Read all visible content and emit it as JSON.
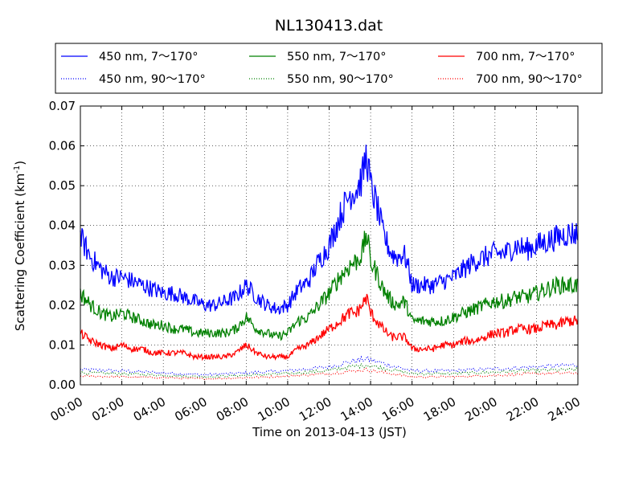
{
  "chart_data": {
    "type": "line",
    "title": "NL130413.dat",
    "xlabel": "Time on 2013-04-13 (JST)",
    "ylabel": "Scattering Coefficient (km",
    "ylabel_sup": "-1",
    "ylabel_end": ")",
    "xlim": [
      0,
      24
    ],
    "ylim": [
      0.0,
      0.07
    ],
    "x_tick_values": [
      0,
      2,
      4,
      6,
      8,
      10,
      12,
      14,
      16,
      18,
      20,
      22,
      24
    ],
    "x_tick_labels": [
      "00:00",
      "02:00",
      "04:00",
      "06:00",
      "08:00",
      "10:00",
      "12:00",
      "14:00",
      "16:00",
      "18:00",
      "20:00",
      "22:00",
      "24:00"
    ],
    "y_tick_values": [
      0.0,
      0.01,
      0.02,
      0.03,
      0.04,
      0.05,
      0.06,
      0.07
    ],
    "y_tick_labels": [
      "0.00",
      "0.01",
      "0.02",
      "0.03",
      "0.04",
      "0.05",
      "0.06",
      "0.07"
    ],
    "grid": true,
    "legend_placement": "top, above plot",
    "legend_columns": 3,
    "series": [
      {
        "name": "450 nm, 7～170°",
        "color": "#0000ff",
        "style": "solid",
        "x": [
          0,
          0.5,
          1,
          1.5,
          2,
          2.5,
          3,
          3.5,
          4,
          4.5,
          5,
          5.5,
          6,
          6.5,
          7,
          7.5,
          8,
          8.5,
          9,
          9.5,
          10,
          10.5,
          11,
          11.5,
          12,
          12.5,
          13,
          13.3,
          13.6,
          13.8,
          14,
          14.3,
          14.6,
          15,
          15.3,
          15.6,
          15.8,
          16,
          16.5,
          17,
          17.5,
          18,
          18.5,
          19,
          19.5,
          20,
          20.5,
          21,
          21.5,
          22,
          22.5,
          23,
          23.5,
          24
        ],
        "y": [
          0.037,
          0.032,
          0.029,
          0.027,
          0.027,
          0.026,
          0.025,
          0.024,
          0.023,
          0.023,
          0.022,
          0.021,
          0.02,
          0.02,
          0.021,
          0.022,
          0.025,
          0.022,
          0.02,
          0.019,
          0.02,
          0.024,
          0.026,
          0.031,
          0.035,
          0.042,
          0.048,
          0.049,
          0.052,
          0.058,
          0.05,
          0.045,
          0.038,
          0.033,
          0.032,
          0.033,
          0.03,
          0.025,
          0.025,
          0.025,
          0.026,
          0.027,
          0.029,
          0.031,
          0.032,
          0.033,
          0.033,
          0.035,
          0.034,
          0.035,
          0.036,
          0.037,
          0.038,
          0.038
        ]
      },
      {
        "name": "450 nm, 90～170°",
        "color": "#0000ff",
        "style": "dotted",
        "x": [
          0,
          2,
          4,
          6,
          8,
          10,
          12,
          13,
          13.8,
          14.5,
          16,
          18,
          20,
          22,
          24
        ],
        "y": [
          0.0038,
          0.0035,
          0.003,
          0.0025,
          0.003,
          0.0035,
          0.0045,
          0.0058,
          0.0065,
          0.0055,
          0.0035,
          0.0035,
          0.004,
          0.0045,
          0.005
        ]
      },
      {
        "name": "550 nm, 7～170°",
        "color": "#008000",
        "style": "solid",
        "x": [
          0,
          0.5,
          1,
          1.5,
          2,
          2.5,
          3,
          3.5,
          4,
          4.5,
          5,
          5.5,
          6,
          6.5,
          7,
          7.5,
          8,
          8.5,
          9,
          9.5,
          10,
          10.5,
          11,
          11.5,
          12,
          12.5,
          13,
          13.3,
          13.6,
          13.8,
          14,
          14.3,
          14.6,
          15,
          15.3,
          15.6,
          15.8,
          16,
          16.5,
          17,
          17.5,
          18,
          18.5,
          19,
          19.5,
          20,
          20.5,
          21,
          21.5,
          22,
          22.5,
          23,
          23.5,
          24
        ],
        "y": [
          0.023,
          0.02,
          0.018,
          0.017,
          0.018,
          0.017,
          0.016,
          0.015,
          0.015,
          0.014,
          0.014,
          0.013,
          0.013,
          0.013,
          0.013,
          0.014,
          0.017,
          0.014,
          0.013,
          0.012,
          0.013,
          0.016,
          0.017,
          0.02,
          0.023,
          0.027,
          0.03,
          0.031,
          0.033,
          0.038,
          0.031,
          0.028,
          0.024,
          0.021,
          0.02,
          0.021,
          0.019,
          0.016,
          0.016,
          0.016,
          0.016,
          0.017,
          0.018,
          0.019,
          0.02,
          0.021,
          0.021,
          0.022,
          0.022,
          0.023,
          0.024,
          0.025,
          0.025,
          0.025
        ]
      },
      {
        "name": "550 nm, 90～170°",
        "color": "#008000",
        "style": "dotted",
        "x": [
          0,
          2,
          4,
          6,
          8,
          10,
          12,
          13,
          13.8,
          14.5,
          16,
          18,
          20,
          22,
          24
        ],
        "y": [
          0.003,
          0.0028,
          0.0024,
          0.002,
          0.0024,
          0.0028,
          0.0036,
          0.0045,
          0.005,
          0.0043,
          0.0028,
          0.0028,
          0.0032,
          0.0036,
          0.0038
        ]
      },
      {
        "name": "700 nm, 7～170°",
        "color": "#ff0000",
        "style": "solid",
        "x": [
          0,
          0.5,
          1,
          1.5,
          2,
          2.5,
          3,
          3.5,
          4,
          4.5,
          5,
          5.5,
          6,
          6.5,
          7,
          7.5,
          8,
          8.5,
          9,
          9.5,
          10,
          10.5,
          11,
          11.5,
          12,
          12.5,
          13,
          13.3,
          13.6,
          13.8,
          14,
          14.3,
          14.6,
          15,
          15.3,
          15.6,
          15.8,
          16,
          16.5,
          17,
          17.5,
          18,
          18.5,
          19,
          19.5,
          20,
          20.5,
          21,
          21.5,
          22,
          22.5,
          23,
          23.5,
          24
        ],
        "y": [
          0.013,
          0.011,
          0.01,
          0.009,
          0.01,
          0.009,
          0.009,
          0.008,
          0.008,
          0.008,
          0.008,
          0.007,
          0.007,
          0.007,
          0.007,
          0.008,
          0.01,
          0.008,
          0.007,
          0.007,
          0.007,
          0.009,
          0.01,
          0.012,
          0.014,
          0.016,
          0.018,
          0.018,
          0.02,
          0.022,
          0.018,
          0.016,
          0.014,
          0.012,
          0.012,
          0.012,
          0.011,
          0.009,
          0.009,
          0.009,
          0.01,
          0.01,
          0.011,
          0.011,
          0.012,
          0.013,
          0.013,
          0.014,
          0.014,
          0.014,
          0.015,
          0.015,
          0.016,
          0.016
        ]
      },
      {
        "name": "700 nm, 90～170°",
        "color": "#ff0000",
        "style": "dotted",
        "x": [
          0,
          2,
          4,
          6,
          8,
          10,
          12,
          13,
          13.8,
          14.5,
          16,
          18,
          20,
          22,
          24
        ],
        "y": [
          0.0022,
          0.002,
          0.0018,
          0.0015,
          0.0018,
          0.0022,
          0.0028,
          0.0034,
          0.0038,
          0.0032,
          0.002,
          0.002,
          0.0024,
          0.0028,
          0.003
        ]
      }
    ]
  }
}
